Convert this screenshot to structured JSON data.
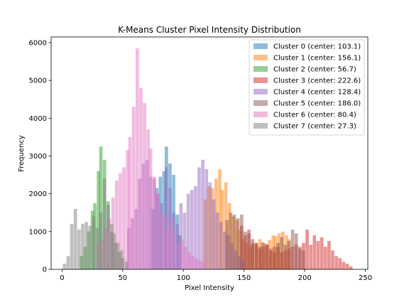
{
  "chart_data": {
    "type": "histogram",
    "title": "K-Means Cluster Pixel Intensity Distribution",
    "xlabel": "Pixel Intensity",
    "ylabel": "Frequency",
    "xlim": [
      -9,
      252
    ],
    "ylim": [
      0,
      6150
    ],
    "xticks": [
      0,
      50,
      100,
      150,
      200,
      250
    ],
    "yticks": [
      0,
      1000,
      2000,
      3000,
      4000,
      5000,
      6000
    ],
    "grid": false,
    "legend_position": "top-right",
    "bin_width": 2.75,
    "series": [
      {
        "name": "Cluster 0 (center: 103.1)",
        "color": "#1f77b4",
        "counts": [
          [
            75,
            1600
          ],
          [
            78,
            2150
          ],
          [
            81,
            2450
          ],
          [
            84,
            2600
          ],
          [
            86,
            3250
          ],
          [
            89,
            2800
          ],
          [
            92,
            2500
          ],
          [
            95,
            1450
          ],
          [
            97,
            900
          ]
        ]
      },
      {
        "name": "Cluster 1 (center: 156.1)",
        "color": "#ff7f0e",
        "counts": [
          [
            118,
            1850
          ],
          [
            121,
            2200
          ],
          [
            124,
            2150
          ],
          [
            127,
            2400
          ],
          [
            130,
            2650
          ],
          [
            132,
            2100
          ],
          [
            135,
            2300
          ],
          [
            138,
            1750
          ],
          [
            141,
            1400
          ],
          [
            144,
            1300
          ],
          [
            146,
            1050
          ],
          [
            149,
            800
          ],
          [
            152,
            700
          ],
          [
            155,
            600
          ],
          [
            157,
            650
          ],
          [
            160,
            700
          ],
          [
            163,
            800
          ],
          [
            165,
            720
          ],
          [
            168,
            680
          ],
          [
            171,
            780
          ],
          [
            174,
            900
          ],
          [
            176,
            880
          ],
          [
            179,
            950
          ],
          [
            182,
            1000
          ],
          [
            185,
            900
          ],
          [
            187,
            800
          ]
        ]
      },
      {
        "name": "Cluster 2 (center: 56.7)",
        "color": "#2ca02c",
        "counts": [
          [
            16,
            350
          ],
          [
            19,
            600
          ],
          [
            22,
            1000
          ],
          [
            25,
            1550
          ],
          [
            27,
            1750
          ],
          [
            30,
            2600
          ],
          [
            32,
            3250
          ],
          [
            35,
            2900
          ],
          [
            38,
            1800
          ],
          [
            41,
            1200
          ],
          [
            43,
            950
          ],
          [
            46,
            700
          ],
          [
            49,
            500
          ]
        ]
      },
      {
        "name": "Cluster 3 (center: 222.6)",
        "color": "#d62728",
        "counts": [
          [
            148,
            1150
          ],
          [
            151,
            900
          ],
          [
            154,
            1050
          ],
          [
            157,
            800
          ],
          [
            160,
            700
          ],
          [
            163,
            550
          ],
          [
            166,
            600
          ],
          [
            169,
            650
          ],
          [
            172,
            500
          ],
          [
            175,
            450
          ],
          [
            178,
            600
          ],
          [
            181,
            450
          ],
          [
            184,
            500
          ],
          [
            187,
            550
          ],
          [
            190,
            600
          ],
          [
            193,
            650
          ],
          [
            196,
            550
          ],
          [
            199,
            700
          ],
          [
            202,
            1050
          ],
          [
            205,
            650
          ],
          [
            208,
            900
          ],
          [
            211,
            750
          ],
          [
            214,
            850
          ],
          [
            217,
            600
          ],
          [
            220,
            750
          ],
          [
            223,
            500
          ],
          [
            226,
            350
          ],
          [
            229,
            300
          ],
          [
            232,
            200
          ],
          [
            235,
            150
          ],
          [
            238,
            80
          ]
        ]
      },
      {
        "name": "Cluster 4 (center: 128.4)",
        "color": "#9467bd",
        "counts": [
          [
            55,
            1100
          ],
          [
            58,
            1350
          ],
          [
            61,
            1600
          ],
          [
            64,
            2400
          ],
          [
            67,
            2800
          ],
          [
            70,
            2900
          ],
          [
            73,
            2450
          ],
          [
            76,
            2400
          ],
          [
            79,
            2000
          ],
          [
            82,
            1750
          ],
          [
            86,
            2700
          ],
          [
            89,
            2150
          ],
          [
            92,
            1500
          ],
          [
            95,
            1200
          ],
          [
            98,
            1750
          ],
          [
            101,
            1500
          ],
          [
            104,
            2000
          ],
          [
            107,
            2100
          ],
          [
            110,
            2200
          ],
          [
            113,
            2700
          ],
          [
            116,
            2900
          ],
          [
            119,
            2650
          ],
          [
            122,
            2300
          ],
          [
            125,
            1850
          ],
          [
            128,
            1500
          ],
          [
            131,
            1250
          ],
          [
            134,
            1000
          ],
          [
            137,
            900
          ],
          [
            140,
            700
          ],
          [
            143,
            500
          ],
          [
            146,
            350
          ],
          [
            149,
            250
          ]
        ]
      },
      {
        "name": "Cluster 5 (center: 186.0)",
        "color": "#8c564b",
        "counts": [
          [
            136,
            1300
          ],
          [
            139,
            1500
          ],
          [
            142,
            1450
          ],
          [
            145,
            1350
          ],
          [
            148,
            1450
          ],
          [
            151,
            1000
          ],
          [
            154,
            950
          ],
          [
            157,
            700
          ],
          [
            160,
            650
          ],
          [
            163,
            600
          ],
          [
            166,
            700
          ],
          [
            169,
            650
          ],
          [
            172,
            550
          ],
          [
            175,
            600
          ],
          [
            178,
            700
          ],
          [
            181,
            850
          ],
          [
            184,
            650
          ],
          [
            187,
            750
          ],
          [
            190,
            1050
          ],
          [
            193,
            950
          ],
          [
            196,
            600
          ],
          [
            199,
            500
          ]
        ]
      },
      {
        "name": "Cluster 6 (center: 80.4)",
        "color": "#e377c2",
        "counts": [
          [
            30,
            700
          ],
          [
            33,
            800
          ],
          [
            36,
            1100
          ],
          [
            39,
            1350
          ],
          [
            42,
            1900
          ],
          [
            45,
            2350
          ],
          [
            48,
            2550
          ],
          [
            51,
            2700
          ],
          [
            54,
            3150
          ],
          [
            56,
            3500
          ],
          [
            59,
            4300
          ],
          [
            62,
            5850
          ],
          [
            65,
            4800
          ],
          [
            68,
            4400
          ],
          [
            71,
            3700
          ],
          [
            73,
            3200
          ],
          [
            76,
            2450
          ],
          [
            79,
            2000
          ],
          [
            82,
            1500
          ],
          [
            85,
            1400
          ],
          [
            87,
            1100
          ],
          [
            90,
            1350
          ],
          [
            93,
            1000
          ],
          [
            96,
            700
          ],
          [
            99,
            800
          ],
          [
            102,
            600
          ],
          [
            105,
            450
          ],
          [
            108,
            350
          ],
          [
            111,
            280
          ],
          [
            114,
            220
          ],
          [
            117,
            180
          ]
        ]
      },
      {
        "name": "Cluster 7 (center: 27.3)",
        "color": "#7f7f7f",
        "counts": [
          [
            2,
            150
          ],
          [
            5,
            350
          ],
          [
            8,
            1200
          ],
          [
            11,
            1600
          ],
          [
            14,
            1050
          ],
          [
            17,
            1200
          ],
          [
            20,
            1250
          ],
          [
            23,
            1150
          ],
          [
            26,
            1400
          ],
          [
            29,
            1100
          ],
          [
            32,
            1500
          ],
          [
            35,
            2400
          ],
          [
            38,
            1700
          ],
          [
            41,
            1000
          ],
          [
            44,
            700
          ],
          [
            47,
            450
          ],
          [
            50,
            300
          ],
          [
            53,
            200
          ]
        ]
      }
    ]
  }
}
